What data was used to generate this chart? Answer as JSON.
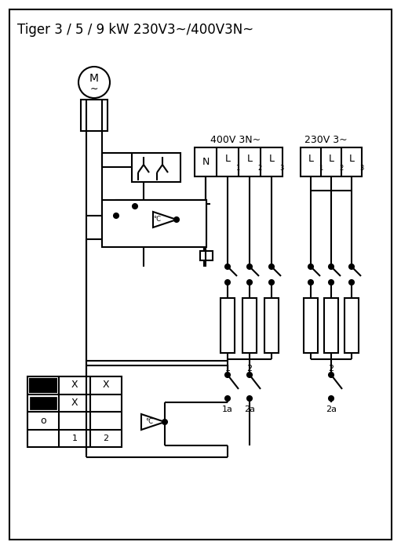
{
  "title": "Tiger 3 / 5 / 9 kW 230V3~/400V3N~",
  "label_400V": "400V 3N~",
  "label_230V": "230V 3~",
  "bg_color": "#ffffff",
  "line_color": "#000000",
  "lw": 1.5,
  "fig_width": 5.11,
  "fig_height": 7.0,
  "dpi": 100
}
